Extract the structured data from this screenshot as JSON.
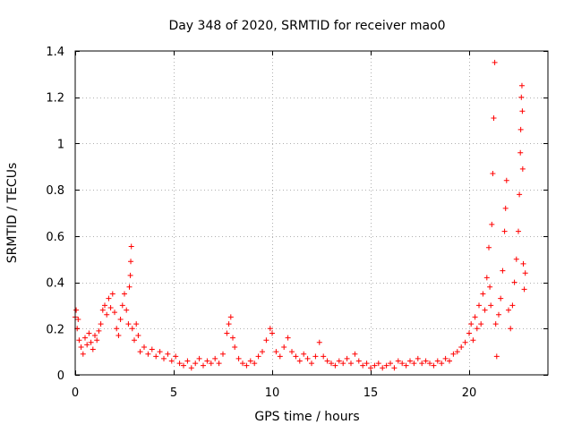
{
  "chart_data": {
    "type": "scatter",
    "title": "Day 348 of 2020, SRMTID for receiver mao0",
    "xlabel": "GPS time / hours",
    "ylabel": "SRMTID / TECUs",
    "xlim": [
      0,
      24
    ],
    "ylim": [
      0,
      1.4
    ],
    "xticks": [
      0,
      5,
      10,
      15,
      20
    ],
    "xtick_labels": [
      "0",
      "5",
      "10",
      "15",
      "20"
    ],
    "yticks": [
      0,
      0.2,
      0.4,
      0.6,
      0.8,
      1.0,
      1.2,
      1.4
    ],
    "ytick_labels": [
      "0",
      "0.2",
      "0.4",
      "0.6",
      "0.8",
      "1",
      "1.2",
      "1.4"
    ],
    "grid": true,
    "marker": "plus",
    "marker_color": "#ff0000",
    "series": [
      {
        "name": "SRMTID",
        "points": [
          [
            0.0,
            0.25
          ],
          [
            0.05,
            0.28
          ],
          [
            0.1,
            0.2
          ],
          [
            0.15,
            0.24
          ],
          [
            0.2,
            0.15
          ],
          [
            0.3,
            0.12
          ],
          [
            0.4,
            0.09
          ],
          [
            0.5,
            0.16
          ],
          [
            0.6,
            0.13
          ],
          [
            0.7,
            0.18
          ],
          [
            0.8,
            0.14
          ],
          [
            0.9,
            0.11
          ],
          [
            1.0,
            0.17
          ],
          [
            1.1,
            0.15
          ],
          [
            1.2,
            0.19
          ],
          [
            1.3,
            0.22
          ],
          [
            1.4,
            0.28
          ],
          [
            1.5,
            0.3
          ],
          [
            1.6,
            0.26
          ],
          [
            1.7,
            0.33
          ],
          [
            1.8,
            0.29
          ],
          [
            1.9,
            0.35
          ],
          [
            2.0,
            0.27
          ],
          [
            2.1,
            0.2
          ],
          [
            2.2,
            0.17
          ],
          [
            2.3,
            0.24
          ],
          [
            2.4,
            0.3
          ],
          [
            2.5,
            0.35
          ],
          [
            2.6,
            0.28
          ],
          [
            2.7,
            0.22
          ],
          [
            2.75,
            0.38
          ],
          [
            2.8,
            0.43
          ],
          [
            2.82,
            0.49
          ],
          [
            2.85,
            0.555
          ],
          [
            2.9,
            0.2
          ],
          [
            3.0,
            0.15
          ],
          [
            3.1,
            0.22
          ],
          [
            3.2,
            0.17
          ],
          [
            3.3,
            0.1
          ],
          [
            3.5,
            0.12
          ],
          [
            3.7,
            0.09
          ],
          [
            3.9,
            0.11
          ],
          [
            4.1,
            0.08
          ],
          [
            4.3,
            0.1
          ],
          [
            4.5,
            0.07
          ],
          [
            4.7,
            0.09
          ],
          [
            4.9,
            0.06
          ],
          [
            5.1,
            0.08
          ],
          [
            5.3,
            0.05
          ],
          [
            5.5,
            0.04
          ],
          [
            5.7,
            0.06
          ],
          [
            5.9,
            0.03
          ],
          [
            6.1,
            0.05
          ],
          [
            6.3,
            0.07
          ],
          [
            6.5,
            0.04
          ],
          [
            6.7,
            0.06
          ],
          [
            6.9,
            0.05
          ],
          [
            7.1,
            0.07
          ],
          [
            7.3,
            0.05
          ],
          [
            7.5,
            0.09
          ],
          [
            7.7,
            0.18
          ],
          [
            7.8,
            0.22
          ],
          [
            7.9,
            0.25
          ],
          [
            8.0,
            0.16
          ],
          [
            8.1,
            0.12
          ],
          [
            8.3,
            0.07
          ],
          [
            8.5,
            0.05
          ],
          [
            8.7,
            0.04
          ],
          [
            8.9,
            0.06
          ],
          [
            9.1,
            0.05
          ],
          [
            9.3,
            0.08
          ],
          [
            9.5,
            0.1
          ],
          [
            9.7,
            0.15
          ],
          [
            9.9,
            0.2
          ],
          [
            10.0,
            0.18
          ],
          [
            10.2,
            0.1
          ],
          [
            10.4,
            0.08
          ],
          [
            10.6,
            0.12
          ],
          [
            10.8,
            0.16
          ],
          [
            11.0,
            0.1
          ],
          [
            11.2,
            0.08
          ],
          [
            11.4,
            0.06
          ],
          [
            11.6,
            0.09
          ],
          [
            11.8,
            0.07
          ],
          [
            12.0,
            0.05
          ],
          [
            12.2,
            0.08
          ],
          [
            12.4,
            0.14
          ],
          [
            12.6,
            0.08
          ],
          [
            12.8,
            0.06
          ],
          [
            13.0,
            0.05
          ],
          [
            13.2,
            0.04
          ],
          [
            13.4,
            0.06
          ],
          [
            13.6,
            0.05
          ],
          [
            13.8,
            0.07
          ],
          [
            14.0,
            0.05
          ],
          [
            14.2,
            0.09
          ],
          [
            14.4,
            0.06
          ],
          [
            14.6,
            0.04
          ],
          [
            14.8,
            0.05
          ],
          [
            15.0,
            0.03
          ],
          [
            15.2,
            0.04
          ],
          [
            15.4,
            0.05
          ],
          [
            15.6,
            0.03
          ],
          [
            15.8,
            0.04
          ],
          [
            16.0,
            0.05
          ],
          [
            16.2,
            0.03
          ],
          [
            16.4,
            0.06
          ],
          [
            16.6,
            0.05
          ],
          [
            16.8,
            0.04
          ],
          [
            17.0,
            0.06
          ],
          [
            17.2,
            0.05
          ],
          [
            17.4,
            0.07
          ],
          [
            17.6,
            0.05
          ],
          [
            17.8,
            0.06
          ],
          [
            18.0,
            0.05
          ],
          [
            18.2,
            0.04
          ],
          [
            18.4,
            0.06
          ],
          [
            18.6,
            0.05
          ],
          [
            18.8,
            0.07
          ],
          [
            19.0,
            0.06
          ],
          [
            19.2,
            0.09
          ],
          [
            19.4,
            0.1
          ],
          [
            19.6,
            0.12
          ],
          [
            19.8,
            0.14
          ],
          [
            20.0,
            0.18
          ],
          [
            20.1,
            0.22
          ],
          [
            20.2,
            0.15
          ],
          [
            20.3,
            0.25
          ],
          [
            20.4,
            0.2
          ],
          [
            20.5,
            0.3
          ],
          [
            20.6,
            0.22
          ],
          [
            20.7,
            0.35
          ],
          [
            20.8,
            0.28
          ],
          [
            20.9,
            0.42
          ],
          [
            21.0,
            0.55
          ],
          [
            21.05,
            0.38
          ],
          [
            21.1,
            0.3
          ],
          [
            21.15,
            0.65
          ],
          [
            21.2,
            0.87
          ],
          [
            21.25,
            1.11
          ],
          [
            21.3,
            1.35
          ],
          [
            21.35,
            0.22
          ],
          [
            21.4,
            0.08
          ],
          [
            21.5,
            0.26
          ],
          [
            21.6,
            0.33
          ],
          [
            21.7,
            0.45
          ],
          [
            21.8,
            0.62
          ],
          [
            21.85,
            0.72
          ],
          [
            21.9,
            0.84
          ],
          [
            22.0,
            0.28
          ],
          [
            22.1,
            0.2
          ],
          [
            22.2,
            0.3
          ],
          [
            22.3,
            0.4
          ],
          [
            22.4,
            0.5
          ],
          [
            22.5,
            0.62
          ],
          [
            22.55,
            0.78
          ],
          [
            22.6,
            0.96
          ],
          [
            22.62,
            1.06
          ],
          [
            22.65,
            1.2
          ],
          [
            22.68,
            1.25
          ],
          [
            22.7,
            1.14
          ],
          [
            22.72,
            0.89
          ],
          [
            22.75,
            0.48
          ],
          [
            22.8,
            0.37
          ],
          [
            22.85,
            0.44
          ]
        ]
      }
    ]
  }
}
